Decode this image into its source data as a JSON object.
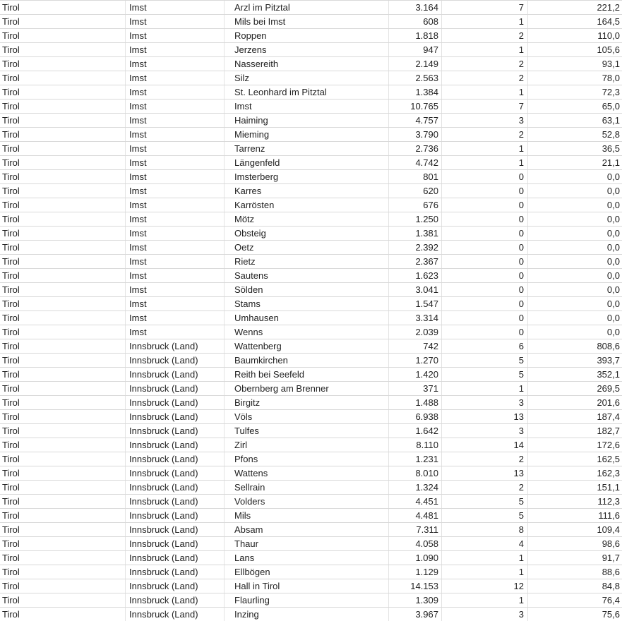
{
  "colors": {
    "background": "#ffffff",
    "row_border": "#d9d9d9",
    "column_border": "#e4e4e4",
    "text": "#222222"
  },
  "table": {
    "columns": [
      {
        "key": "state",
        "align": "left"
      },
      {
        "key": "district",
        "align": "left"
      },
      {
        "key": "municipality",
        "align": "left"
      },
      {
        "key": "population",
        "align": "right"
      },
      {
        "key": "cases",
        "align": "right"
      },
      {
        "key": "incidence",
        "align": "right"
      }
    ],
    "rows": [
      [
        "Tirol",
        "Imst",
        "Arzl im Pitztal",
        "3.164",
        "7",
        "221,2"
      ],
      [
        "Tirol",
        "Imst",
        "Mils bei Imst",
        "608",
        "1",
        "164,5"
      ],
      [
        "Tirol",
        "Imst",
        "Roppen",
        "1.818",
        "2",
        "110,0"
      ],
      [
        "Tirol",
        "Imst",
        "Jerzens",
        "947",
        "1",
        "105,6"
      ],
      [
        "Tirol",
        "Imst",
        "Nassereith",
        "2.149",
        "2",
        "93,1"
      ],
      [
        "Tirol",
        "Imst",
        "Silz",
        "2.563",
        "2",
        "78,0"
      ],
      [
        "Tirol",
        "Imst",
        "St. Leonhard im Pitztal",
        "1.384",
        "1",
        "72,3"
      ],
      [
        "Tirol",
        "Imst",
        "Imst",
        "10.765",
        "7",
        "65,0"
      ],
      [
        "Tirol",
        "Imst",
        "Haiming",
        "4.757",
        "3",
        "63,1"
      ],
      [
        "Tirol",
        "Imst",
        "Mieming",
        "3.790",
        "2",
        "52,8"
      ],
      [
        "Tirol",
        "Imst",
        "Tarrenz",
        "2.736",
        "1",
        "36,5"
      ],
      [
        "Tirol",
        "Imst",
        "Längenfeld",
        "4.742",
        "1",
        "21,1"
      ],
      [
        "Tirol",
        "Imst",
        "Imsterberg",
        "801",
        "0",
        "0,0"
      ],
      [
        "Tirol",
        "Imst",
        "Karres",
        "620",
        "0",
        "0,0"
      ],
      [
        "Tirol",
        "Imst",
        "Karrösten",
        "676",
        "0",
        "0,0"
      ],
      [
        "Tirol",
        "Imst",
        "Mötz",
        "1.250",
        "0",
        "0,0"
      ],
      [
        "Tirol",
        "Imst",
        "Obsteig",
        "1.381",
        "0",
        "0,0"
      ],
      [
        "Tirol",
        "Imst",
        "Oetz",
        "2.392",
        "0",
        "0,0"
      ],
      [
        "Tirol",
        "Imst",
        "Rietz",
        "2.367",
        "0",
        "0,0"
      ],
      [
        "Tirol",
        "Imst",
        "Sautens",
        "1.623",
        "0",
        "0,0"
      ],
      [
        "Tirol",
        "Imst",
        "Sölden",
        "3.041",
        "0",
        "0,0"
      ],
      [
        "Tirol",
        "Imst",
        "Stams",
        "1.547",
        "0",
        "0,0"
      ],
      [
        "Tirol",
        "Imst",
        "Umhausen",
        "3.314",
        "0",
        "0,0"
      ],
      [
        "Tirol",
        "Imst",
        "Wenns",
        "2.039",
        "0",
        "0,0"
      ],
      [
        "Tirol",
        "Innsbruck (Land)",
        "Wattenberg",
        "742",
        "6",
        "808,6"
      ],
      [
        "Tirol",
        "Innsbruck (Land)",
        "Baumkirchen",
        "1.270",
        "5",
        "393,7"
      ],
      [
        "Tirol",
        "Innsbruck (Land)",
        "Reith bei Seefeld",
        "1.420",
        "5",
        "352,1"
      ],
      [
        "Tirol",
        "Innsbruck (Land)",
        "Obernberg am Brenner",
        "371",
        "1",
        "269,5"
      ],
      [
        "Tirol",
        "Innsbruck (Land)",
        "Birgitz",
        "1.488",
        "3",
        "201,6"
      ],
      [
        "Tirol",
        "Innsbruck (Land)",
        "Völs",
        "6.938",
        "13",
        "187,4"
      ],
      [
        "Tirol",
        "Innsbruck (Land)",
        "Tulfes",
        "1.642",
        "3",
        "182,7"
      ],
      [
        "Tirol",
        "Innsbruck (Land)",
        "Zirl",
        "8.110",
        "14",
        "172,6"
      ],
      [
        "Tirol",
        "Innsbruck (Land)",
        "Pfons",
        "1.231",
        "2",
        "162,5"
      ],
      [
        "Tirol",
        "Innsbruck (Land)",
        "Wattens",
        "8.010",
        "13",
        "162,3"
      ],
      [
        "Tirol",
        "Innsbruck (Land)",
        "Sellrain",
        "1.324",
        "2",
        "151,1"
      ],
      [
        "Tirol",
        "Innsbruck (Land)",
        "Volders",
        "4.451",
        "5",
        "112,3"
      ],
      [
        "Tirol",
        "Innsbruck (Land)",
        "Mils",
        "4.481",
        "5",
        "111,6"
      ],
      [
        "Tirol",
        "Innsbruck (Land)",
        "Absam",
        "7.311",
        "8",
        "109,4"
      ],
      [
        "Tirol",
        "Innsbruck (Land)",
        "Thaur",
        "4.058",
        "4",
        "98,6"
      ],
      [
        "Tirol",
        "Innsbruck (Land)",
        "Lans",
        "1.090",
        "1",
        "91,7"
      ],
      [
        "Tirol",
        "Innsbruck (Land)",
        "Ellbögen",
        "1.129",
        "1",
        "88,6"
      ],
      [
        "Tirol",
        "Innsbruck (Land)",
        "Hall in Tirol",
        "14.153",
        "12",
        "84,8"
      ],
      [
        "Tirol",
        "Innsbruck (Land)",
        "Flaurling",
        "1.309",
        "1",
        "76,4"
      ],
      [
        "Tirol",
        "Innsbruck (Land)",
        "Inzing",
        "3.967",
        "3",
        "75,6"
      ]
    ]
  }
}
